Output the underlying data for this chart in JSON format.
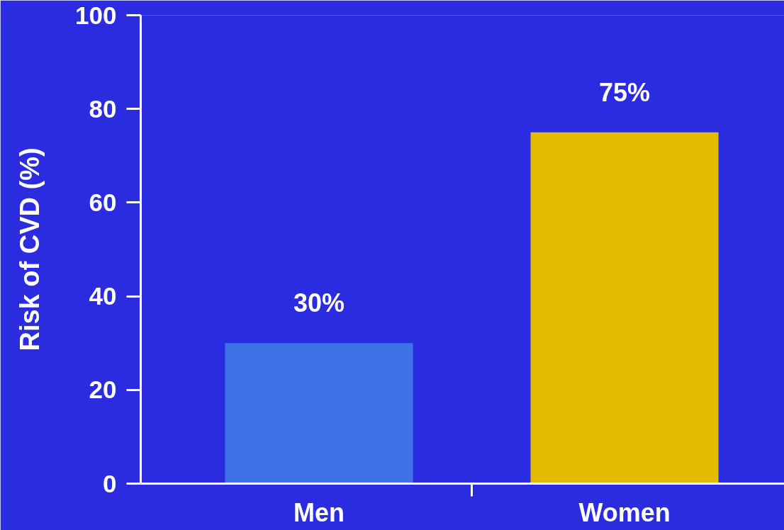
{
  "chart_data": {
    "type": "bar",
    "ylabel": "Risk of CVD (%)",
    "categories": [
      "Men",
      "Women"
    ],
    "values": [
      30,
      75
    ],
    "colors": [
      "#3d73e6",
      "#e3bc00"
    ],
    "value_labels": [
      "30%",
      "75%"
    ],
    "ylim": [
      0,
      100
    ],
    "yticks": [
      0,
      20,
      40,
      60,
      80,
      100
    ]
  }
}
